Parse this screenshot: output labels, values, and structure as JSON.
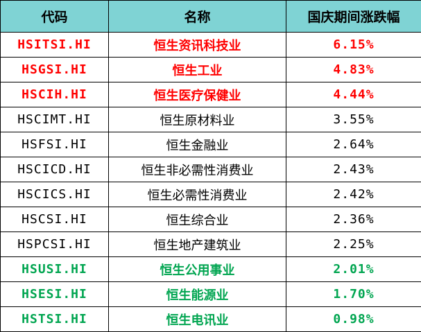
{
  "table": {
    "headers": [
      "代码",
      "名称",
      "国庆期间涨跌幅"
    ],
    "rows": [
      {
        "code": "HSITSI.HI",
        "name": "恒生资讯科技业",
        "change": "6.15%",
        "tone": "up"
      },
      {
        "code": "HSGSI.HI",
        "name": "恒生工业",
        "change": "4.83%",
        "tone": "up"
      },
      {
        "code": "HSCIH.HI",
        "name": "恒生医疗保健业",
        "change": "4.44%",
        "tone": "up"
      },
      {
        "code": "HSCIMT.HI",
        "name": "恒生原材料业",
        "change": "3.55%",
        "tone": "neutral"
      },
      {
        "code": "HSFSI.HI",
        "name": "恒生金融业",
        "change": "2.64%",
        "tone": "neutral"
      },
      {
        "code": "HSCICD.HI",
        "name": "恒生非必需性消费业",
        "change": "2.43%",
        "tone": "neutral"
      },
      {
        "code": "HSCICS.HI",
        "name": "恒生必需性消费业",
        "change": "2.42%",
        "tone": "neutral"
      },
      {
        "code": "HSCSI.HI",
        "name": "恒生综合业",
        "change": "2.36%",
        "tone": "neutral"
      },
      {
        "code": "HSPCSI.HI",
        "name": "恒生地产建筑业",
        "change": "2.25%",
        "tone": "neutral"
      },
      {
        "code": "HSUSI.HI",
        "name": "恒生公用事业",
        "change": "2.01%",
        "tone": "down"
      },
      {
        "code": "HSESI.HI",
        "name": "恒生能源业",
        "change": "1.70%",
        "tone": "down"
      },
      {
        "code": "HSTSI.HI",
        "name": "恒生电讯业",
        "change": "0.98%",
        "tone": "down"
      }
    ]
  },
  "colors": {
    "header_bg": "#7fd3d4",
    "up": "#ff0000",
    "down": "#00a550",
    "neutral": "#000000"
  }
}
